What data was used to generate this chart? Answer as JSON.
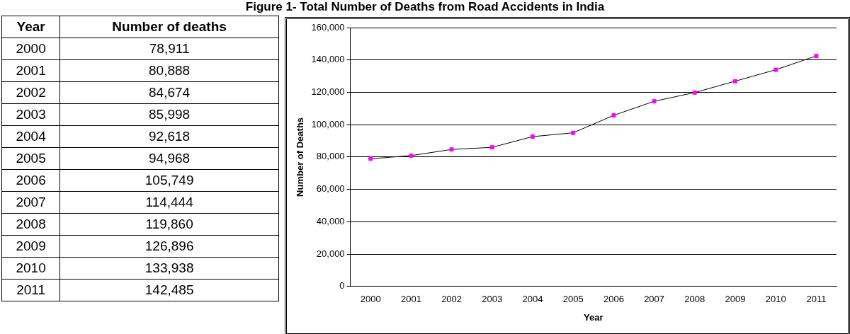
{
  "chart_data": {
    "type": "line",
    "title": "Figure 1- Total Number of Deaths from Road Accidents in India",
    "xlabel": "Year",
    "ylabel": "Number of Deaths",
    "categories": [
      "2000",
      "2001",
      "2002",
      "2003",
      "2004",
      "2005",
      "2006",
      "2007",
      "2008",
      "2009",
      "2010",
      "2011"
    ],
    "series": [
      {
        "color": "#ff00ff",
        "values": [
          78911,
          80888,
          84674,
          85998,
          92618,
          94968,
          105749,
          114444,
          119860,
          126896,
          133938,
          142485
        ]
      }
    ],
    "value_labels": [
      "78,911",
      "80,888",
      "84,674",
      "85,998",
      "92,618",
      "94,968",
      "105,749",
      "114,444",
      "119,860",
      "126,896",
      "133,938",
      "142,485"
    ],
    "annotations": [
      "Year",
      "Number of deaths"
    ],
    "ylim": [
      0,
      160000
    ],
    "yticks": [
      0,
      {
        "value": 20000,
        "label": "20,000"
      },
      {
        "value": 40000,
        "label": "40,000"
      },
      {
        "value": 60000,
        "label": "60,000"
      },
      {
        "value": 80000,
        "label": "80,000"
      },
      {
        "value": 100000,
        "label": "100,000"
      },
      {
        "value": 120000,
        "label": "120,000"
      },
      {
        "value": 140000,
        "label": "140,000"
      },
      {
        "value": 160000,
        "label": "160,000"
      }
    ],
    "grid": "y",
    "legend": false,
    "marker": "square",
    "line_style": "solid"
  }
}
